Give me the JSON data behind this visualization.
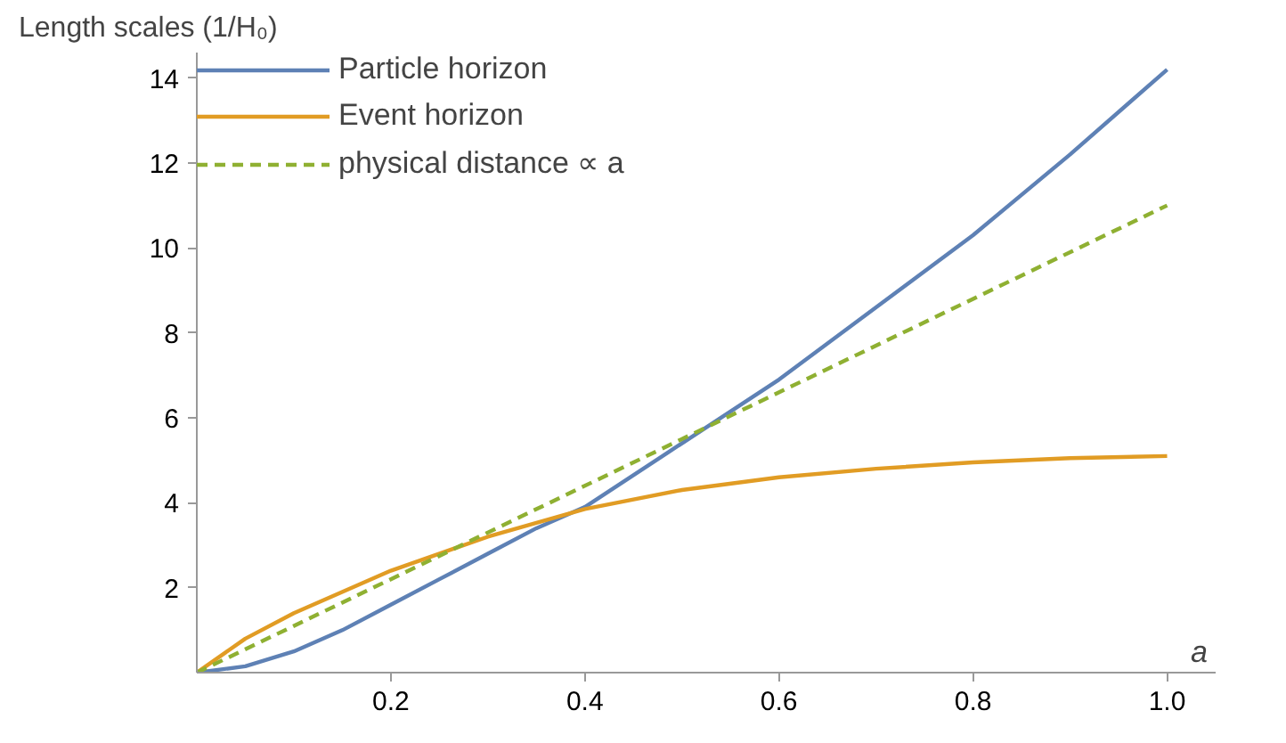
{
  "chart_data": {
    "type": "line",
    "ylabel": "Length scales (1/H₀)",
    "xlabel": "a",
    "xlim": [
      0,
      1.05
    ],
    "ylim": [
      0,
      14.6
    ],
    "xticks": [
      0.2,
      0.4,
      0.6,
      0.8,
      {
        "value": 1.0,
        "label": "1.0"
      }
    ],
    "yticks": [
      2,
      4,
      6,
      8,
      10,
      12,
      14
    ],
    "grid": false,
    "legend": "top left",
    "marker": "none",
    "series": [
      {
        "name": "Particle horizon",
        "color": "#5e81b5",
        "line_style": "solid",
        "x": [
          0,
          0.05,
          0.1,
          0.15,
          0.2,
          0.25,
          0.3,
          0.35,
          0.4,
          0.5,
          0.6,
          0.7,
          0.8,
          0.9,
          1.0
        ],
        "values": [
          0,
          0.15,
          0.5,
          1.0,
          1.6,
          2.2,
          2.8,
          3.4,
          3.9,
          5.4,
          6.9,
          8.6,
          10.3,
          12.2,
          14.2
        ]
      },
      {
        "name": "Event horizon",
        "color": "#e19c24",
        "line_style": "solid",
        "x": [
          0,
          0.05,
          0.1,
          0.2,
          0.3,
          0.4,
          0.5,
          0.6,
          0.7,
          0.8,
          0.9,
          1.0
        ],
        "values": [
          0,
          0.8,
          1.4,
          2.4,
          3.2,
          3.85,
          4.3,
          4.6,
          4.8,
          4.95,
          5.05,
          5.1
        ]
      },
      {
        "name": "physical distance ∝ a",
        "color": "#8fb032",
        "line_style": "dashed",
        "x": [
          0,
          1.0
        ],
        "values": [
          0,
          11
        ]
      }
    ]
  }
}
